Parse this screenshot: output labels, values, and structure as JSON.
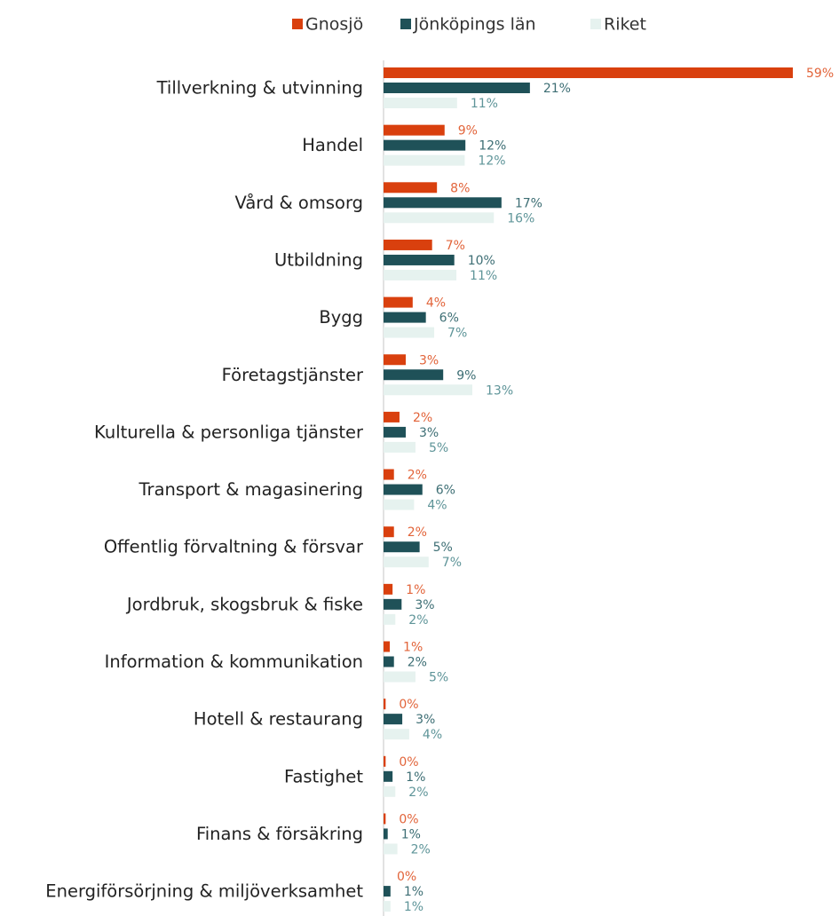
{
  "chart_data": {
    "type": "bar",
    "orientation": "horizontal",
    "categories": [
      "Tillverkning & utvinning",
      "Handel",
      "Vård & omsorg",
      "Utbildning",
      "Bygg",
      "Företagstjänster",
      "Kulturella & personliga tjänster",
      "Transport & magasinering",
      "Offentlig förvaltning & försvar",
      "Jordbruk, skogsbruk & fiske",
      "Information & kommunikation",
      "Hotell & restaurang",
      "Fastighet",
      "Finans & försäkring",
      "Energiförsörjning & miljöverksamhet"
    ],
    "series": [
      {
        "name": "Gnosjö",
        "color": "#d9400e",
        "label_color": "#e2643a",
        "values": [
          59,
          8.8,
          7.7,
          7.0,
          4.2,
          3.2,
          2.3,
          1.5,
          1.5,
          1.3,
          0.9,
          0.3,
          0.3,
          0.3,
          0
        ],
        "value_labels": [
          "59%",
          "9%",
          "8%",
          "7%",
          "4%",
          "3%",
          "2%",
          "2%",
          "2%",
          "1%",
          "1%",
          "0%",
          "0%",
          "0%",
          "0%"
        ]
      },
      {
        "name": "Jönköpings län",
        "color": "#1f5158",
        "label_color": "#3d6e74",
        "values": [
          21.1,
          11.8,
          17.0,
          10.2,
          6.1,
          8.6,
          3.2,
          5.6,
          5.2,
          2.6,
          1.5,
          2.7,
          1.3,
          0.6,
          1.0
        ],
        "value_labels": [
          "21%",
          "12%",
          "17%",
          "10%",
          "6%",
          "9%",
          "3%",
          "6%",
          "5%",
          "3%",
          "2%",
          "3%",
          "1%",
          "1%",
          "1%"
        ]
      },
      {
        "name": "Riket",
        "color": "#e6f2ef",
        "label_color": "#5f9599",
        "values": [
          10.6,
          11.7,
          15.9,
          10.5,
          7.3,
          12.8,
          4.6,
          4.4,
          6.5,
          1.7,
          4.6,
          3.7,
          1.7,
          2.0,
          1.0
        ],
        "value_labels": [
          "11%",
          "12%",
          "16%",
          "11%",
          "7%",
          "13%",
          "5%",
          "4%",
          "7%",
          "2%",
          "5%",
          "4%",
          "2%",
          "2%",
          "1%"
        ]
      }
    ],
    "legend": "top"
  }
}
